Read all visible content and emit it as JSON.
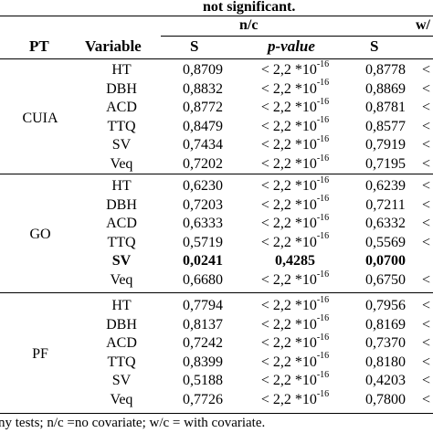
{
  "caption": "not significant.",
  "header_groups": {
    "nc": "n/c",
    "wc": "w/"
  },
  "columns": {
    "pt": "PT",
    "variable": "Variable",
    "s": "S",
    "pvalue": "p-value",
    "s2": "S"
  },
  "groups": [
    {
      "pt": "CUIA",
      "rows": [
        {
          "variable": "HT",
          "s": "0,8709",
          "p_base": "< 2,2 *10",
          "p_exp": "-16",
          "s2": "0,8778",
          "cut": "<"
        },
        {
          "variable": "DBH",
          "s": "0,8832",
          "p_base": "< 2,2 *10",
          "p_exp": "-16",
          "s2": "0,8869",
          "cut": "<"
        },
        {
          "variable": "ACD",
          "s": "0,8772",
          "p_base": "< 2,2 *10",
          "p_exp": "-16",
          "s2": "0,8781",
          "cut": "<"
        },
        {
          "variable": "TTQ",
          "s": "0,8479",
          "p_base": "< 2,2 *10",
          "p_exp": "-16",
          "s2": "0,8577",
          "cut": "<"
        },
        {
          "variable": "SV",
          "s": "0,7434",
          "p_base": "< 2,2 *10",
          "p_exp": "-16",
          "s2": "0,7919",
          "cut": "<"
        },
        {
          "variable": "Veq",
          "s": "0,7202",
          "p_base": "< 2,2 *10",
          "p_exp": "-16",
          "s2": "0,7195",
          "cut": "<"
        }
      ]
    },
    {
      "pt": "GO",
      "rows": [
        {
          "variable": "HT",
          "s": "0,6230",
          "p_base": "< 2,2 *10",
          "p_exp": "-16",
          "s2": "0,6239",
          "cut": "<"
        },
        {
          "variable": "DBH",
          "s": "0,7203",
          "p_base": "< 2,2 *10",
          "p_exp": "-16",
          "s2": "0,7211",
          "cut": "<"
        },
        {
          "variable": "ACD",
          "s": "0,6333",
          "p_base": "< 2,2 *10",
          "p_exp": "-16",
          "s2": "0,6332",
          "cut": "<"
        },
        {
          "variable": "TTQ",
          "s": "0,5719",
          "p_base": "< 2,2 *10",
          "p_exp": "-16",
          "s2": "0,5569",
          "cut": "<"
        },
        {
          "variable": "SV",
          "s": "0,0241",
          "p_base": "0,4285",
          "p_exp": "",
          "s2": "0,0700",
          "cut": "",
          "bold": true
        },
        {
          "variable": "Veq",
          "s": "0,6680",
          "p_base": "< 2,2 *10",
          "p_exp": "-16",
          "s2": "0,6750",
          "cut": "<"
        }
      ]
    },
    {
      "pt": "PF",
      "rows": [
        {
          "variable": "HT",
          "s": "0,7794",
          "p_base": "< 2,2 *10",
          "p_exp": "-16",
          "s2": "0,7956",
          "cut": "<"
        },
        {
          "variable": "DBH",
          "s": "0,8137",
          "p_base": "< 2,2 *10",
          "p_exp": "-16",
          "s2": "0,8169",
          "cut": "<"
        },
        {
          "variable": "ACD",
          "s": "0,7242",
          "p_base": "< 2,2 *10",
          "p_exp": "-16",
          "s2": "0,7370",
          "cut": "<"
        },
        {
          "variable": "TTQ",
          "s": "0,8399",
          "p_base": "< 2,2 *10",
          "p_exp": "-16",
          "s2": "0,8180",
          "cut": "<"
        },
        {
          "variable": "SV",
          "s": "0,5188",
          "p_base": "< 2,2 *10",
          "p_exp": "-16",
          "s2": "0,4203",
          "cut": "<"
        },
        {
          "variable": "Veq",
          "s": "0,7726",
          "p_base": "< 2,2 *10",
          "p_exp": "-16",
          "s2": "0,7800",
          "cut": "<"
        }
      ]
    }
  ],
  "footnote": "ny tests; n/c =no covariate; w/c = with covariate."
}
